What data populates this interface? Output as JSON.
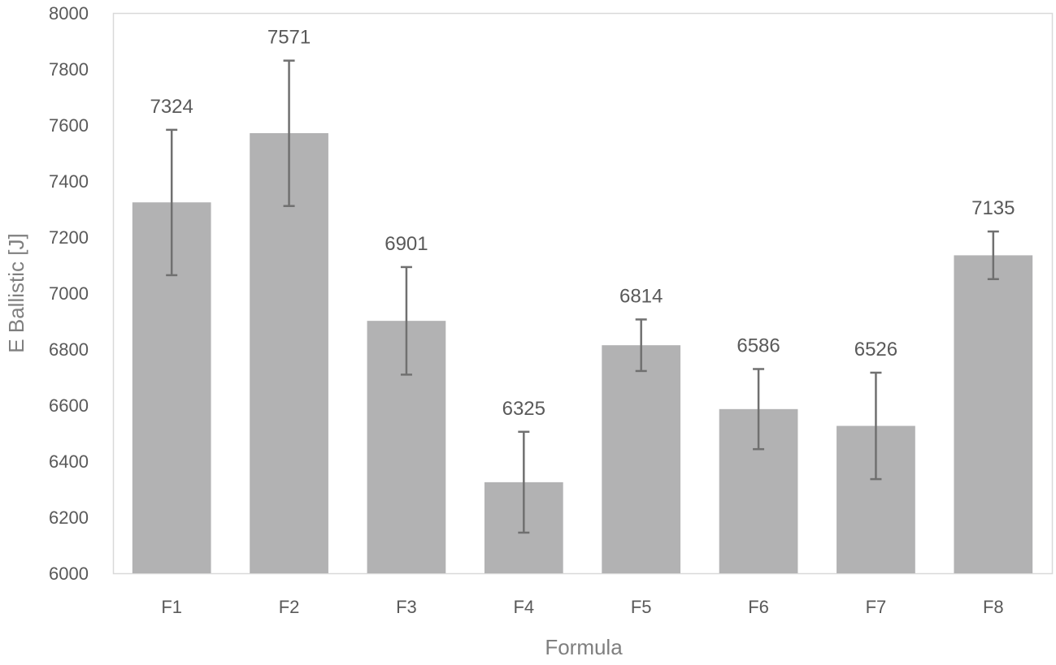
{
  "chart_data": {
    "type": "bar",
    "title": "",
    "xlabel": "Formula",
    "ylabel": "E Ballistic [J]",
    "categories": [
      "F1",
      "F2",
      "F3",
      "F4",
      "F5",
      "F6",
      "F7",
      "F8"
    ],
    "values": [
      7324,
      7571,
      6901,
      6325,
      6814,
      6586,
      6526,
      7135
    ],
    "error_upper": [
      7583,
      7830,
      7093,
      6505,
      6906,
      6729,
      6716,
      7220
    ],
    "error_lower": [
      7064,
      7311,
      6709,
      6145,
      6722,
      6443,
      6336,
      7050
    ],
    "data_labels": [
      "7324",
      "7571",
      "6901",
      "6325",
      "6814",
      "6586",
      "6526",
      "7135"
    ],
    "ylim": [
      6000,
      8000
    ],
    "yticks": [
      6000,
      6200,
      6400,
      6600,
      6800,
      7000,
      7200,
      7400,
      7600,
      7800,
      8000
    ],
    "ytick_labels": [
      "6000",
      "6200",
      "6400",
      "6600",
      "6800",
      "7000",
      "7200",
      "7400",
      "7600",
      "7800",
      "8000"
    ],
    "grid": false,
    "legend": "none",
    "colors": {
      "bar": "#b2b2b3",
      "error_bar": "#707070",
      "plot_border": "#d9d9d9"
    }
  }
}
